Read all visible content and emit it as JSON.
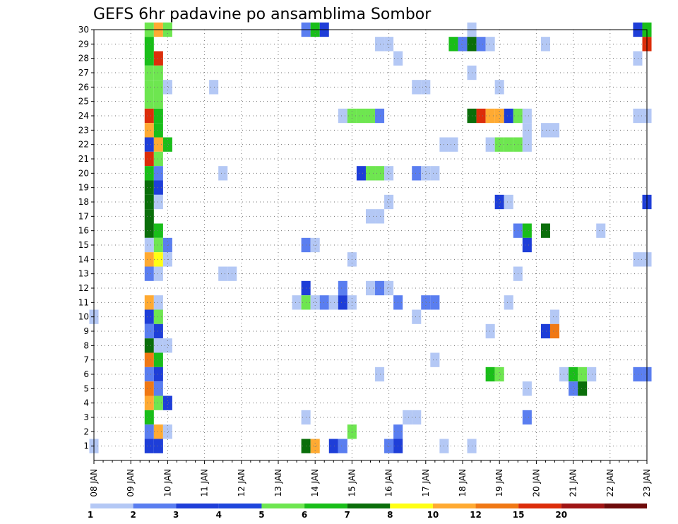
{
  "chart_data": {
    "type": "heatmap",
    "title": "GEFS 6hr padavine po ansamblima Sombor",
    "x_range": [
      8.0,
      23.0
    ],
    "y_range": [
      0,
      30
    ],
    "x_tick_labels": [
      "08 JAN",
      "09 JAN",
      "10 JAN",
      "11 JAN",
      "12 JAN",
      "13 JAN",
      "14 JAN",
      "15 JAN",
      "16 JAN",
      "17 JAN",
      "18 JAN",
      "19 JAN",
      "20 JAN",
      "21 JAN",
      "22 JAN",
      "23 JAN"
    ],
    "y_tick_labels": [
      "1",
      "2",
      "3",
      "4",
      "5",
      "6",
      "7",
      "8",
      "9",
      "10",
      "11",
      "12",
      "13",
      "14",
      "15",
      "16",
      "17",
      "18",
      "19",
      "20",
      "21",
      "22",
      "23",
      "24",
      "25",
      "26",
      "27",
      "28",
      "29",
      "30"
    ],
    "legend": {
      "labels": [
        "1",
        "2",
        "3",
        "4",
        "5",
        "6",
        "7",
        "8",
        "10",
        "12",
        "15",
        "20"
      ],
      "colors": [
        "#b4c8f5",
        "#5a7ef0",
        "#1e3ed8",
        "#1e46dc",
        "#6ee650",
        "#19be19",
        "#0a6e0a",
        "#ffff14",
        "#ffaa32",
        "#f07814",
        "#dc2d0a",
        "#a01414",
        "#6e0a0a"
      ]
    },
    "cells_note": "each cell = [member, time_in_days, color_index(1-13)]",
    "cells": [
      [
        30,
        9.5,
        5
      ],
      [
        30,
        9.75,
        9
      ],
      [
        30,
        10.0,
        5
      ],
      [
        30,
        13.75,
        2
      ],
      [
        30,
        14.0,
        6
      ],
      [
        30,
        14.25,
        3
      ],
      [
        30,
        18.25,
        1
      ],
      [
        30,
        22.75,
        3
      ],
      [
        30,
        23.0,
        6
      ],
      [
        29,
        9.5,
        6
      ],
      [
        29,
        15.75,
        1
      ],
      [
        29,
        16.0,
        1
      ],
      [
        29,
        17.75,
        6
      ],
      [
        29,
        18.0,
        2
      ],
      [
        29,
        18.25,
        7
      ],
      [
        29,
        18.5,
        2
      ],
      [
        29,
        18.75,
        1
      ],
      [
        29,
        20.25,
        1
      ],
      [
        29,
        23.0,
        11
      ],
      [
        28,
        9.5,
        6
      ],
      [
        28,
        9.75,
        11
      ],
      [
        28,
        16.25,
        1
      ],
      [
        28,
        22.75,
        1
      ],
      [
        27,
        9.5,
        5
      ],
      [
        27,
        9.75,
        5
      ],
      [
        27,
        18.25,
        1
      ],
      [
        26,
        9.5,
        5
      ],
      [
        26,
        9.75,
        5
      ],
      [
        26,
        10.0,
        1
      ],
      [
        26,
        11.25,
        1
      ],
      [
        26,
        16.75,
        1
      ],
      [
        26,
        17.0,
        1
      ],
      [
        26,
        19.0,
        1
      ],
      [
        25,
        9.5,
        5
      ],
      [
        25,
        9.75,
        5
      ],
      [
        24,
        9.5,
        11
      ],
      [
        24,
        9.75,
        6
      ],
      [
        24,
        14.75,
        1
      ],
      [
        24,
        15.0,
        5
      ],
      [
        24,
        15.25,
        5
      ],
      [
        24,
        15.5,
        5
      ],
      [
        24,
        15.75,
        2
      ],
      [
        24,
        18.25,
        7
      ],
      [
        24,
        18.5,
        11
      ],
      [
        24,
        18.75,
        9
      ],
      [
        24,
        19.0,
        9
      ],
      [
        24,
        19.25,
        3
      ],
      [
        24,
        19.5,
        5
      ],
      [
        24,
        19.75,
        1
      ],
      [
        24,
        22.75,
        1
      ],
      [
        24,
        23.0,
        1
      ],
      [
        23,
        9.5,
        9
      ],
      [
        23,
        9.75,
        6
      ],
      [
        23,
        19.75,
        1
      ],
      [
        23,
        20.25,
        1
      ],
      [
        23,
        20.5,
        1
      ],
      [
        22,
        9.5,
        3
      ],
      [
        22,
        9.75,
        9
      ],
      [
        22,
        10.0,
        6
      ],
      [
        22,
        17.5,
        1
      ],
      [
        22,
        17.75,
        1
      ],
      [
        22,
        18.75,
        1
      ],
      [
        22,
        19.0,
        5
      ],
      [
        22,
        19.25,
        5
      ],
      [
        22,
        19.5,
        5
      ],
      [
        22,
        19.75,
        1
      ],
      [
        21,
        9.5,
        11
      ],
      [
        21,
        9.75,
        5
      ],
      [
        20,
        9.5,
        6
      ],
      [
        20,
        9.75,
        2
      ],
      [
        20,
        11.5,
        1
      ],
      [
        20,
        15.25,
        3
      ],
      [
        20,
        15.5,
        5
      ],
      [
        20,
        15.75,
        5
      ],
      [
        20,
        16.0,
        1
      ],
      [
        20,
        16.75,
        2
      ],
      [
        20,
        17.0,
        1
      ],
      [
        20,
        17.25,
        1
      ],
      [
        19,
        9.5,
        7
      ],
      [
        19,
        9.75,
        3
      ],
      [
        18,
        9.5,
        7
      ],
      [
        18,
        9.75,
        1
      ],
      [
        18,
        16.0,
        1
      ],
      [
        18,
        19.0,
        3
      ],
      [
        18,
        19.25,
        1
      ],
      [
        18,
        23.0,
        3
      ],
      [
        17,
        9.5,
        7
      ],
      [
        17,
        15.5,
        1
      ],
      [
        17,
        15.75,
        1
      ],
      [
        16,
        9.5,
        7
      ],
      [
        16,
        9.75,
        6
      ],
      [
        16,
        19.5,
        2
      ],
      [
        16,
        19.75,
        6
      ],
      [
        16,
        20.25,
        7
      ],
      [
        16,
        21.75,
        1
      ],
      [
        15,
        9.5,
        1
      ],
      [
        15,
        9.75,
        5
      ],
      [
        15,
        10.0,
        2
      ],
      [
        15,
        13.75,
        2
      ],
      [
        15,
        14.0,
        1
      ],
      [
        15,
        19.75,
        3
      ],
      [
        14,
        9.5,
        9
      ],
      [
        14,
        9.75,
        8
      ],
      [
        14,
        10.0,
        1
      ],
      [
        14,
        15.0,
        1
      ],
      [
        14,
        22.75,
        1
      ],
      [
        14,
        23.0,
        1
      ],
      [
        13,
        9.5,
        2
      ],
      [
        13,
        9.75,
        1
      ],
      [
        13,
        11.5,
        1
      ],
      [
        13,
        11.75,
        1
      ],
      [
        13,
        19.5,
        1
      ],
      [
        12,
        13.75,
        3
      ],
      [
        12,
        14.75,
        2
      ],
      [
        12,
        15.5,
        1
      ],
      [
        12,
        15.75,
        2
      ],
      [
        12,
        16.0,
        1
      ],
      [
        11,
        9.5,
        9
      ],
      [
        11,
        9.75,
        1
      ],
      [
        11,
        13.5,
        1
      ],
      [
        11,
        13.75,
        5
      ],
      [
        11,
        14.0,
        1
      ],
      [
        11,
        14.25,
        2
      ],
      [
        11,
        14.5,
        1
      ],
      [
        11,
        14.75,
        3
      ],
      [
        11,
        15.0,
        1
      ],
      [
        11,
        16.25,
        2
      ],
      [
        11,
        17.0,
        2
      ],
      [
        11,
        17.25,
        2
      ],
      [
        11,
        19.25,
        1
      ],
      [
        10,
        9.5,
        3
      ],
      [
        10,
        9.75,
        5
      ],
      [
        10,
        8.0,
        1
      ],
      [
        10,
        16.75,
        1
      ],
      [
        10,
        20.5,
        1
      ],
      [
        9,
        9.5,
        2
      ],
      [
        9,
        9.75,
        3
      ],
      [
        9,
        18.75,
        1
      ],
      [
        9,
        20.25,
        3
      ],
      [
        9,
        20.5,
        10
      ],
      [
        8,
        9.5,
        7
      ],
      [
        8,
        9.75,
        1
      ],
      [
        8,
        10.0,
        1
      ],
      [
        7,
        9.5,
        10
      ],
      [
        7,
        9.75,
        6
      ],
      [
        7,
        17.25,
        1
      ],
      [
        6,
        9.5,
        2
      ],
      [
        6,
        9.75,
        3
      ],
      [
        6,
        15.75,
        1
      ],
      [
        6,
        18.75,
        6
      ],
      [
        6,
        19.0,
        5
      ],
      [
        6,
        20.75,
        1
      ],
      [
        6,
        21.0,
        6
      ],
      [
        6,
        21.25,
        5
      ],
      [
        6,
        21.5,
        1
      ],
      [
        6,
        22.75,
        2
      ],
      [
        6,
        23.0,
        2
      ],
      [
        5,
        9.5,
        10
      ],
      [
        5,
        9.75,
        2
      ],
      [
        5,
        19.75,
        1
      ],
      [
        5,
        21.0,
        2
      ],
      [
        5,
        21.25,
        7
      ],
      [
        4,
        9.5,
        9
      ],
      [
        4,
        9.75,
        5
      ],
      [
        4,
        10.0,
        3
      ],
      [
        3,
        9.5,
        6
      ],
      [
        3,
        13.75,
        1
      ],
      [
        3,
        16.5,
        1
      ],
      [
        3,
        16.75,
        1
      ],
      [
        3,
        19.75,
        2
      ],
      [
        2,
        9.5,
        2
      ],
      [
        2,
        9.75,
        9
      ],
      [
        2,
        10.0,
        1
      ],
      [
        2,
        15.0,
        5
      ],
      [
        2,
        16.25,
        2
      ],
      [
        1,
        8.0,
        1
      ],
      [
        1,
        9.5,
        3
      ],
      [
        1,
        9.75,
        3
      ],
      [
        1,
        13.75,
        7
      ],
      [
        1,
        14.0,
        9
      ],
      [
        1,
        14.5,
        3
      ],
      [
        1,
        14.75,
        2
      ],
      [
        1,
        16.0,
        2
      ],
      [
        1,
        16.25,
        3
      ],
      [
        1,
        17.5,
        1
      ],
      [
        1,
        18.25,
        1
      ]
    ]
  }
}
